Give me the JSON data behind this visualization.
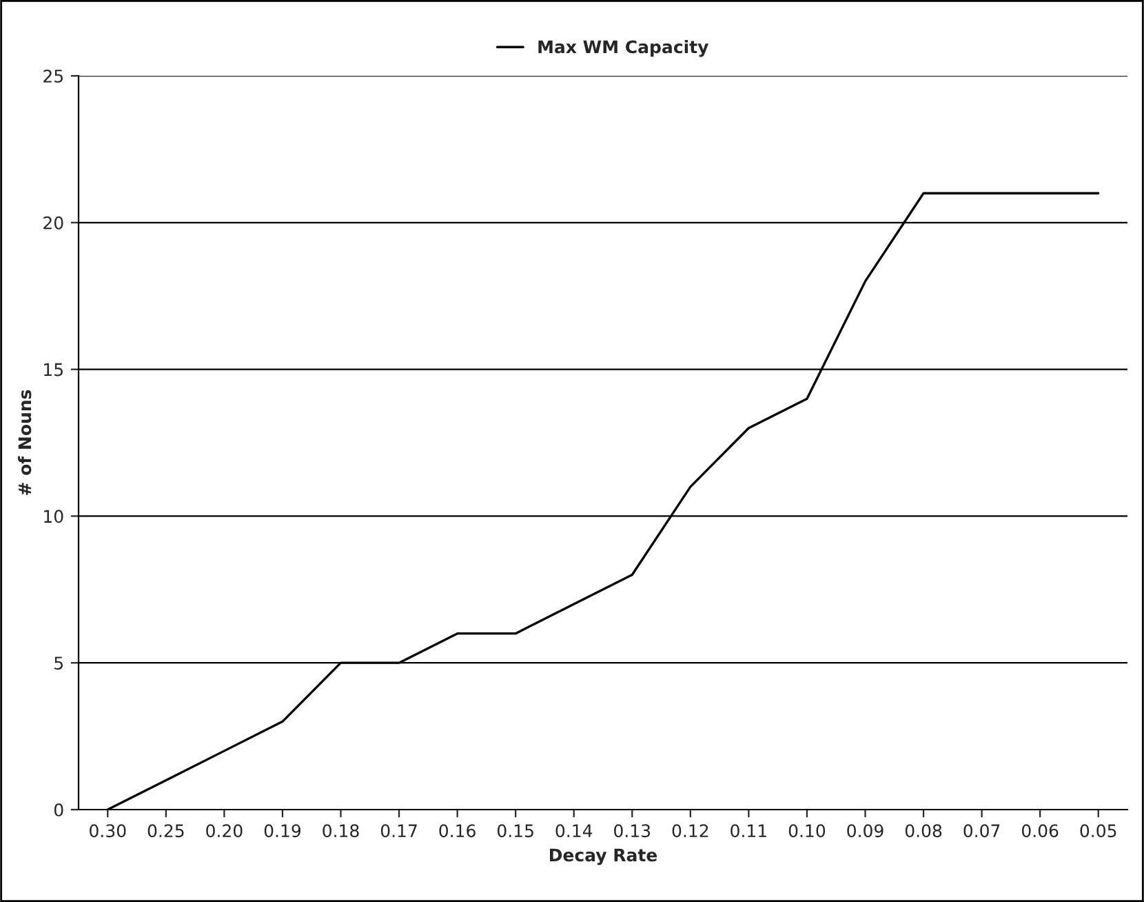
{
  "chart_data": {
    "type": "line",
    "xlabel": "Decay Rate",
    "ylabel": "# of Nouns",
    "categories": [
      "0.30",
      "0.25",
      "0.20",
      "0.19",
      "0.18",
      "0.17",
      "0.16",
      "0.15",
      "0.14",
      "0.13",
      "0.12",
      "0.11",
      "0.10",
      "0.09",
      "0.08",
      "0.07",
      "0.06",
      "0.05"
    ],
    "series": [
      {
        "name": "Max WM Capacity",
        "color": "#000000",
        "values": [
          0,
          1,
          2,
          3,
          5,
          5,
          6,
          6,
          7,
          8,
          11,
          13,
          14,
          18,
          21,
          21,
          21,
          21
        ]
      }
    ],
    "ylim": [
      0,
      25
    ],
    "yticks": [
      0,
      5,
      10,
      15,
      20,
      25
    ],
    "grid": "y",
    "legend": "top",
    "marker": "none",
    "line_style": "solid"
  }
}
